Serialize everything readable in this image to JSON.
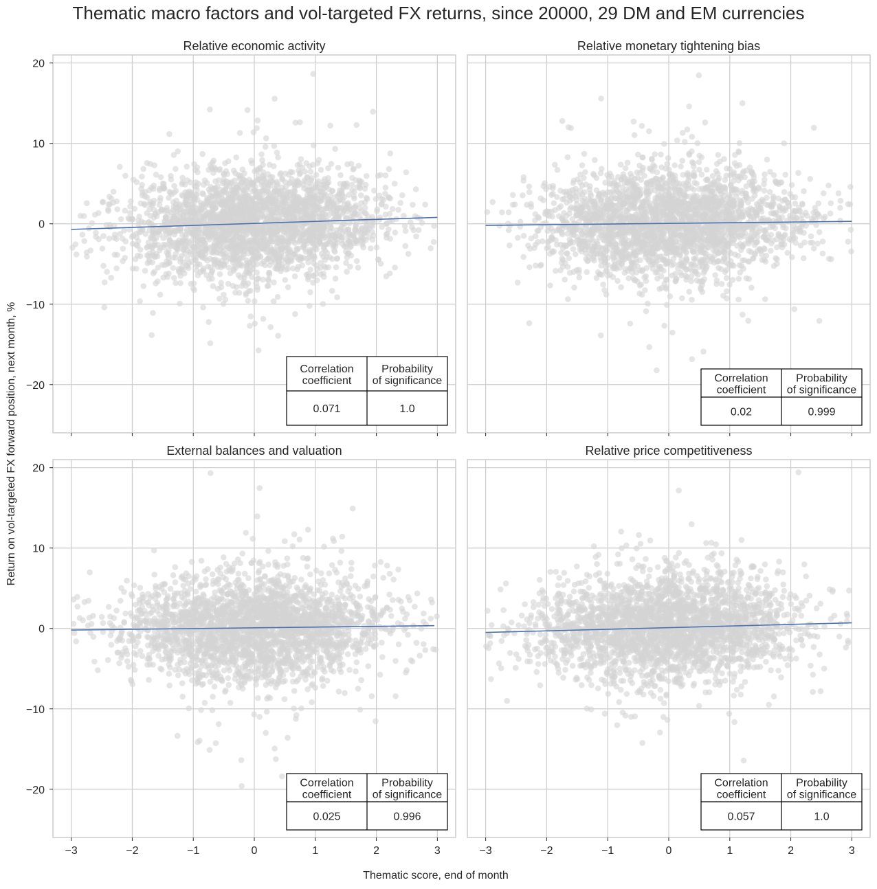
{
  "figure": {
    "title": "Thematic macro factors and vol-targeted FX returns, since 20000, 29 DM and EM currencies",
    "xlabel": "Thematic score, end of month",
    "ylabel": "Return on vol-targeted FX forward position, next month, %"
  },
  "colors": {
    "points": "#d3d3d3",
    "regression_line": "#4c72b0",
    "grid": "#cccccc",
    "axes_edge": "#cccccc",
    "table_border": "#000000"
  },
  "chart_data": [
    {
      "type": "scatter",
      "title": "Relative economic activity",
      "xlabel": "Thematic score, end of month",
      "ylabel": "Return on vol-targeted FX forward position, next month, %",
      "xlim": [
        -3.3,
        3.3
      ],
      "ylim": [
        -26,
        21
      ],
      "xticks": [
        -3,
        -2,
        -1,
        0,
        1,
        2,
        3
      ],
      "yticks": [
        -20,
        -10,
        0,
        10,
        20
      ],
      "grid": true,
      "regression_line": {
        "x": [
          -3,
          3
        ],
        "y": [
          -0.7,
          0.8
        ]
      },
      "stats_table": {
        "headers": [
          [
            "Correlation",
            "coefficient"
          ],
          [
            "Probability",
            "of significance"
          ]
        ],
        "values": [
          "0.071",
          "1.0"
        ]
      }
    },
    {
      "type": "scatter",
      "title": "Relative monetary tightening bias",
      "xlabel": "Thematic score, end of month",
      "ylabel": "Return on vol-targeted FX forward position, next month, %",
      "xlim": [
        -3.3,
        3.3
      ],
      "ylim": [
        -26,
        21
      ],
      "xticks": [
        -3,
        -2,
        -1,
        0,
        1,
        2,
        3
      ],
      "yticks": [
        -20,
        -10,
        0,
        10,
        20
      ],
      "grid": true,
      "regression_line": {
        "x": [
          -3,
          3
        ],
        "y": [
          -0.2,
          0.3
        ]
      },
      "stats_table": {
        "headers": [
          [
            "Correlation",
            "coefficient"
          ],
          [
            "Probability",
            "of significance"
          ]
        ],
        "values": [
          "0.02",
          "0.999"
        ]
      }
    },
    {
      "type": "scatter",
      "title": "External balances and valuation",
      "xlabel": "Thematic score, end of month",
      "ylabel": "Return on vol-targeted FX forward position, next month, %",
      "xlim": [
        -3.3,
        3.3
      ],
      "ylim": [
        -26,
        21
      ],
      "xticks": [
        -3,
        -2,
        -1,
        0,
        1,
        2,
        3
      ],
      "yticks": [
        -20,
        -10,
        0,
        10,
        20
      ],
      "grid": true,
      "regression_line": {
        "x": [
          -3,
          2.95
        ],
        "y": [
          -0.2,
          0.35
        ]
      },
      "stats_table": {
        "headers": [
          [
            "Correlation",
            "coefficient"
          ],
          [
            "Probability",
            "of significance"
          ]
        ],
        "values": [
          "0.025",
          "0.996"
        ]
      }
    },
    {
      "type": "scatter",
      "title": "Relative price competitiveness",
      "xlabel": "Thematic score, end of month",
      "ylabel": "Return on vol-targeted FX forward position, next month, %",
      "xlim": [
        -3.3,
        3.3
      ],
      "ylim": [
        -26,
        21
      ],
      "xticks": [
        -3,
        -2,
        -1,
        0,
        1,
        2,
        3
      ],
      "yticks": [
        -20,
        -10,
        0,
        10,
        20
      ],
      "grid": true,
      "regression_line": {
        "x": [
          -3,
          3
        ],
        "y": [
          -0.5,
          0.7
        ]
      },
      "stats_table": {
        "headers": [
          [
            "Correlation",
            "coefficient"
          ],
          [
            "Probability",
            "of significance"
          ]
        ],
        "values": [
          "0.057",
          "1.0"
        ]
      }
    }
  ]
}
